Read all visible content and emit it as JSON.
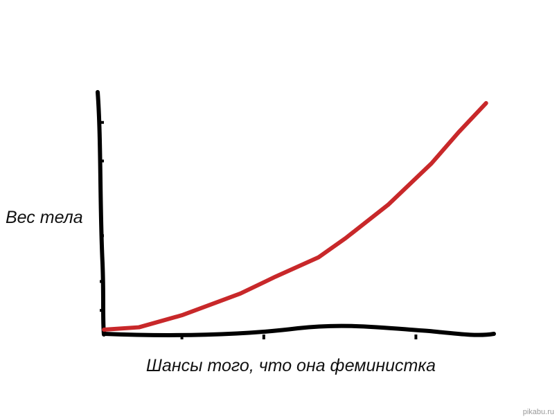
{
  "chart_data": {
    "type": "line",
    "x_label": "Шансы того, что она феминистка",
    "y_label": "Вес тела",
    "watermark": "pikabu.ru",
    "x": [
      0,
      0.9,
      2,
      3.5,
      4.4,
      5.5,
      6.2,
      7.3,
      8.4,
      9.1,
      9.8
    ],
    "series": [
      {
        "color": "#c8282a",
        "values": [
          0.2,
          0.3,
          0.8,
          1.7,
          2.4,
          3.2,
          4,
          5.4,
          7.1,
          8.4,
          9.6
        ]
      }
    ],
    "xlim": [
      0,
      10
    ],
    "ylim": [
      0,
      10
    ],
    "xticks": [
      2,
      4.1,
      8
    ],
    "yticks": [
      1,
      2.2,
      4.1,
      7.2,
      8.8
    ]
  }
}
